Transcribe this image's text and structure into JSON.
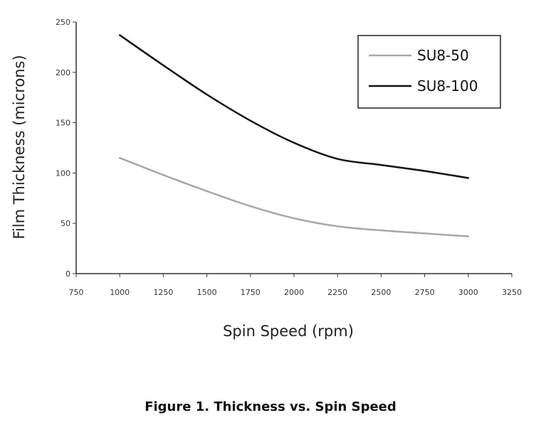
{
  "chart_data": {
    "type": "line",
    "title": "",
    "xlabel": "Spin Speed (rpm)",
    "ylabel": "Film Thickness (microns)",
    "xlim": [
      750,
      3250
    ],
    "ylim": [
      0,
      250
    ],
    "x_ticks": [
      "750",
      "1000",
      "1250",
      "1500",
      "1750",
      "2000",
      "2250",
      "2500",
      "2750",
      "3000",
      "3250"
    ],
    "y_ticks": [
      "0",
      "50",
      "100",
      "150",
      "200",
      "250"
    ],
    "grid": false,
    "legend_position": "top-right",
    "series": [
      {
        "name": "SU8-50",
        "color": "#a8a8a8",
        "x": [
          1000,
          1250,
          1500,
          1750,
          2000,
          2250,
          2500,
          2750,
          3000
        ],
        "y": [
          115,
          98,
          82,
          67,
          55,
          47,
          43,
          40,
          37
        ]
      },
      {
        "name": "SU8-100",
        "color": "#111111",
        "x": [
          1000,
          1250,
          1500,
          1750,
          2000,
          2250,
          2500,
          2750,
          3000
        ],
        "y": [
          237,
          207,
          178,
          152,
          130,
          114,
          108,
          102,
          95
        ]
      }
    ]
  },
  "caption": "Figure 1. Thickness vs. Spin Speed"
}
